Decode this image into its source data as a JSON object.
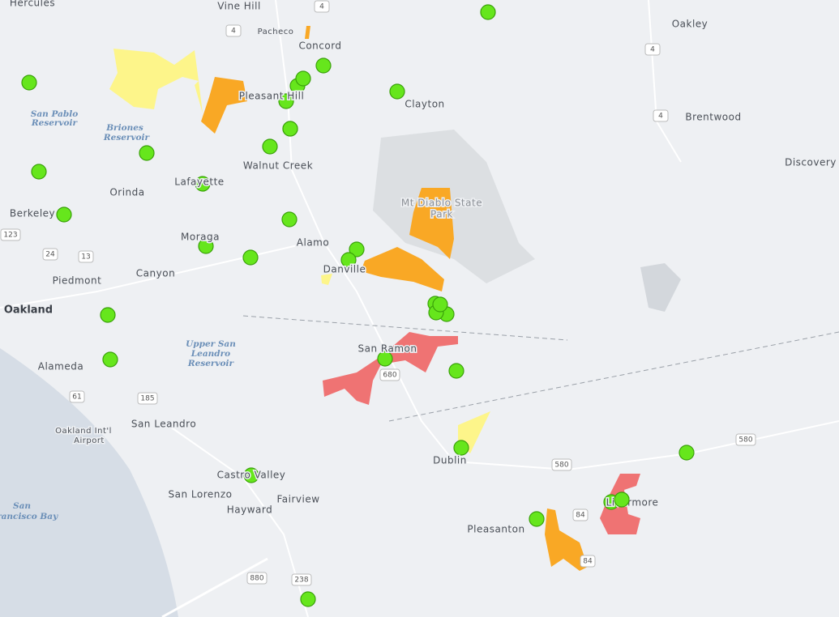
{
  "labels": [
    "Hercules",
    "Vine Hill",
    "Pacheco",
    "Concord",
    "Oakley",
    "San Pablo",
    "Reservoir",
    "Briones",
    "Reservoir",
    "Pleasant Hill",
    "Clayton",
    "Brentwood",
    "Walnut Creek",
    "Discovery",
    "Orinda",
    "Lafayette",
    "Berkeley",
    "Mt Diablo State",
    "Park",
    "Moraga",
    "Alamo",
    "Canyon",
    "Danville",
    "Piedmont",
    "Oakland",
    "San Ramon",
    "Upper San",
    "Leandro",
    "Reservoir",
    "Alameda",
    "San Leandro",
    "Oakland Int'l",
    "Airport",
    "Dublin",
    "Castro Valley",
    "San Lorenzo",
    "Fairview",
    "Hayward",
    "Pleasanton",
    "Livermore",
    "San",
    "Francisco Bay"
  ],
  "shields": [
    "4",
    "4",
    "4",
    "4",
    "123",
    "24",
    "13",
    "680",
    "61",
    "185",
    "580",
    "580",
    "84",
    "84",
    "880",
    "238"
  ]
}
